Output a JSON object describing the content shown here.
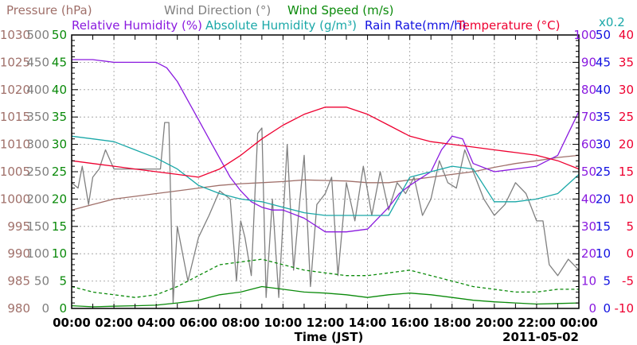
{
  "colors": {
    "pressure": "#a0706a",
    "wind_direction": "#808080",
    "wind_speed": "#0a8a0a",
    "humidity": "#8a1adf",
    "abs_humidity": "#1aa8a8",
    "rain_rate": "#1010e0",
    "temperature": "#ee0030",
    "grid": "#999999",
    "frame": "#000000"
  },
  "chart_data": {
    "type": "line",
    "title_rows": [
      [
        {
          "text": "Pressure (hPa)",
          "color_key": "pressure"
        },
        {
          "text": "Wind Direction (°)",
          "color_key": "wind_direction"
        },
        {
          "text": "Wind Speed (m/s)",
          "color_key": "wind_speed"
        }
      ],
      [
        {
          "text": "Relative Humidity (%)",
          "color_key": "humidity"
        },
        {
          "text": "Absolute Humidity (g/m³)",
          "color_key": "abs_humidity"
        },
        {
          "text": "Rain Rate(mm/h)",
          "color_key": "rain_rate"
        },
        {
          "text": "Temperature (°C)",
          "color_key": "temperature"
        }
      ]
    ],
    "rain_scale_note": "x0.2",
    "xlabel": "Time (JST)",
    "date_label": "2011-05-02",
    "x_ticks": [
      "00:00",
      "02:00",
      "04:00",
      "06:00",
      "08:00",
      "10:00",
      "12:00",
      "14:00",
      "16:00",
      "18:00",
      "20:00",
      "22:00",
      "00:00"
    ],
    "x_range_hours": [
      0,
      24
    ],
    "grid": true,
    "left_axes": [
      {
        "name": "pressure",
        "color_key": "pressure",
        "ticks": [
          "1030",
          "1025",
          "1020",
          "1015",
          "1010",
          "1005",
          "1000",
          "995",
          "990",
          "985",
          "980"
        ]
      },
      {
        "name": "wind_direction",
        "color_key": "wind_direction",
        "ticks": [
          "500",
          "450",
          "400",
          "350",
          "300",
          "250",
          "200",
          "150",
          "100",
          "50",
          "0"
        ]
      },
      {
        "name": "wind_speed",
        "color_key": "wind_speed",
        "ticks": [
          "50",
          "45",
          "40",
          "35",
          "30",
          "25",
          "20",
          "15",
          "10",
          "5",
          "0"
        ]
      }
    ],
    "right_axes": [
      {
        "name": "humidity",
        "color_key": "humidity",
        "ticks": [
          "100",
          "90",
          "80",
          "70",
          "60",
          "50",
          "40",
          "30",
          "20",
          "10",
          "0"
        ]
      },
      {
        "name": "rain_rate",
        "color_key": "rain_rate",
        "ticks": [
          "50",
          "45",
          "40",
          "35",
          "30",
          "25",
          "20",
          "15",
          "10",
          "5",
          "0"
        ]
      },
      {
        "name": "temperature",
        "color_key": "temperature",
        "ticks": [
          "40",
          "35",
          "30",
          "25",
          "20",
          "15",
          "10",
          "5",
          "0",
          "-5",
          "-10"
        ]
      }
    ],
    "series": [
      {
        "name": "Pressure (hPa)",
        "key": "pressure",
        "color_key": "pressure",
        "min": 980,
        "max": 1030,
        "x": [
          0,
          1,
          2,
          3,
          4,
          5,
          6,
          7,
          8,
          9,
          10,
          11,
          12,
          13,
          14,
          15,
          16,
          17,
          18,
          19,
          20,
          21,
          22,
          23,
          24
        ],
        "y": [
          998,
          999,
          1000,
          1000.5,
          1001,
          1001.5,
          1002,
          1002.5,
          1002.8,
          1003,
          1003.2,
          1003.5,
          1003.4,
          1003.3,
          1003,
          1003,
          1003.5,
          1004,
          1004.5,
          1005,
          1005.8,
          1006.5,
          1007,
          1007.6,
          1008
        ]
      },
      {
        "name": "Wind Direction (°)",
        "key": "wind_direction",
        "color_key": "wind_direction",
        "min": 0,
        "max": 500,
        "x": [
          0,
          0.3,
          0.5,
          0.8,
          1,
          1.3,
          1.6,
          2,
          2.5,
          3,
          3.5,
          4,
          4.2,
          4.4,
          4.6,
          4.8,
          5,
          5.5,
          6,
          6.5,
          7,
          7.5,
          7.8,
          8,
          8.2,
          8.5,
          8.8,
          9,
          9.2,
          9.5,
          9.8,
          10,
          10.2,
          10.5,
          10.8,
          11,
          11.3,
          11.6,
          12,
          12.3,
          12.6,
          13,
          13.4,
          13.8,
          14.2,
          14.6,
          15,
          15.4,
          15.8,
          16.2,
          16.6,
          17,
          17.4,
          17.8,
          18.2,
          18.6,
          19,
          19.5,
          20,
          20.5,
          21,
          21.5,
          22,
          22.3,
          22.6,
          23,
          23.5,
          24
        ],
        "y": [
          230,
          220,
          260,
          190,
          240,
          255,
          290,
          255,
          255,
          255,
          255,
          255,
          255,
          340,
          340,
          10,
          150,
          50,
          130,
          170,
          215,
          200,
          50,
          160,
          130,
          60,
          320,
          330,
          20,
          200,
          20,
          160,
          300,
          70,
          200,
          280,
          40,
          190,
          210,
          240,
          60,
          230,
          160,
          260,
          170,
          250,
          180,
          230,
          210,
          240,
          170,
          200,
          270,
          230,
          220,
          290,
          250,
          200,
          170,
          190,
          230,
          210,
          160,
          160,
          80,
          60,
          90,
          70
        ]
      },
      {
        "name": "Wind Speed (m/s)",
        "key": "wind_speed",
        "color_key": "wind_speed",
        "min": 0,
        "max": 50,
        "x": [
          0,
          1,
          2,
          3,
          4,
          5,
          6,
          7,
          8,
          9,
          10,
          11,
          12,
          13,
          14,
          15,
          16,
          17,
          18,
          19,
          20,
          21,
          22,
          23,
          24
        ],
        "y": [
          0.5,
          0.3,
          0.4,
          0.5,
          0.6,
          1,
          1.5,
          2.5,
          3,
          4,
          3.5,
          3,
          2.8,
          2.5,
          2,
          2.5,
          2.8,
          2.5,
          2,
          1.5,
          1.2,
          1,
          0.8,
          0.9,
          1
        ]
      },
      {
        "name": "Wind Speed gust (m/s)",
        "key": "wind_gust",
        "color_key": "wind_speed",
        "min": 0,
        "max": 50,
        "dashed": true,
        "x": [
          0,
          1,
          2,
          3,
          4,
          5,
          6,
          7,
          8,
          9,
          10,
          11,
          12,
          13,
          14,
          15,
          16,
          17,
          18,
          19,
          20,
          21,
          22,
          23,
          24
        ],
        "y": [
          4,
          3,
          2.5,
          2,
          2.5,
          4,
          6,
          8,
          8.5,
          9,
          8,
          7,
          6.5,
          6,
          6,
          6.5,
          7,
          6,
          5,
          4,
          3.5,
          3,
          3,
          3.5,
          3.5
        ]
      },
      {
        "name": "Relative Humidity (%)",
        "key": "humidity",
        "color_key": "humidity",
        "min": 0,
        "max": 100,
        "x": [
          0,
          1,
          2,
          3,
          4,
          4.5,
          5,
          5.5,
          6,
          6.5,
          7,
          7.5,
          8,
          8.5,
          9,
          9.5,
          10,
          11,
          12,
          13,
          14,
          15,
          15.5,
          16,
          17,
          17.5,
          18,
          18.5,
          19,
          20,
          21,
          22,
          23,
          23.5,
          24
        ],
        "y": [
          91,
          91,
          90,
          90,
          90,
          88,
          83,
          76,
          69,
          62,
          55,
          48,
          43,
          39,
          37,
          36,
          36,
          33,
          28,
          28,
          29,
          37,
          42,
          45,
          50,
          58,
          63,
          62,
          53,
          50,
          51,
          52,
          56,
          64,
          72
        ]
      },
      {
        "name": "Absolute Humidity (g/m³)",
        "key": "abs_humidity",
        "color_key": "abs_humidity",
        "min": 0,
        "max": 50,
        "x": [
          0,
          1,
          2,
          3,
          4,
          5,
          6,
          7,
          8,
          9,
          10,
          11,
          12,
          13,
          14,
          15,
          16,
          17,
          18,
          19,
          20,
          21,
          22,
          23,
          24
        ],
        "y": [
          31.5,
          31,
          30.5,
          29,
          27.5,
          25.5,
          22.5,
          21,
          20,
          19.5,
          18.5,
          17.5,
          17,
          17,
          17,
          17,
          24,
          25,
          26,
          25.5,
          19.5,
          19.5,
          20,
          21,
          24.5
        ]
      },
      {
        "name": "Temperature (°C)",
        "key": "temperature",
        "color_key": "temperature",
        "min": -10,
        "max": 40,
        "x": [
          0,
          1,
          2,
          3,
          4,
          5,
          6,
          7,
          8,
          9,
          10,
          11,
          12,
          13,
          14,
          15,
          16,
          17,
          18,
          19,
          20,
          21,
          22,
          23,
          24
        ],
        "y": [
          17,
          16.5,
          16,
          15.5,
          15,
          14.5,
          14,
          15.5,
          18,
          21,
          23.5,
          25.5,
          26.8,
          26.8,
          25.5,
          23.5,
          21.5,
          20.5,
          20,
          19.5,
          19,
          18.5,
          18,
          17,
          15.5
        ]
      }
    ]
  }
}
